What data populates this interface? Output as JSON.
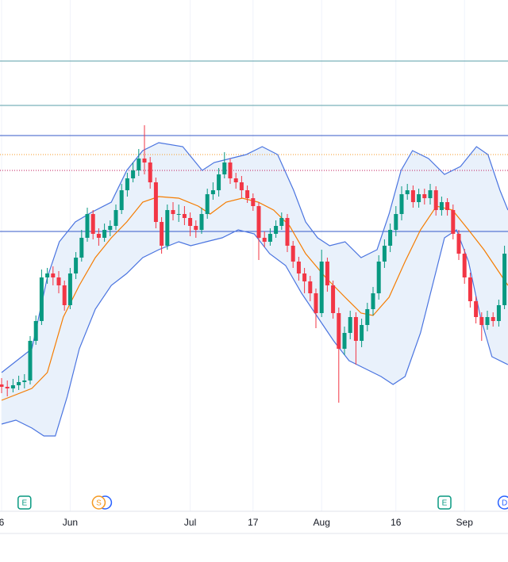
{
  "chart_data": {
    "type": "candlestick",
    "categories": [
      "6",
      null,
      null,
      null,
      null,
      null,
      null,
      null,
      null,
      null,
      null,
      null,
      "Jun",
      null,
      null,
      null,
      null,
      null,
      null,
      null,
      null,
      null,
      null,
      null,
      null,
      null,
      null,
      null,
      null,
      null,
      null,
      null,
      null,
      "Jul",
      null,
      null,
      null,
      null,
      null,
      null,
      null,
      null,
      null,
      null,
      "17",
      null,
      null,
      null,
      null,
      null,
      null,
      null,
      null,
      null,
      null,
      null,
      "Aug",
      null,
      null,
      null,
      null,
      null,
      null,
      null,
      null,
      null,
      null,
      null,
      null,
      "16",
      null,
      null,
      null,
      null,
      null,
      null,
      null,
      null,
      null,
      null,
      null,
      "Sep",
      null,
      null,
      null,
      null,
      null,
      null,
      null
    ],
    "open": [
      165,
      162,
      160,
      164,
      168,
      170,
      220,
      245,
      300,
      305,
      300,
      290,
      265,
      305,
      325,
      350,
      380,
      355,
      350,
      360,
      365,
      385,
      410,
      425,
      435,
      450,
      445,
      420,
      370,
      340,
      385,
      380,
      380,
      375,
      365,
      360,
      380,
      405,
      410,
      430,
      445,
      425,
      420,
      410,
      400,
      390,
      350,
      345,
      355,
      365,
      375,
      340,
      320,
      305,
      295,
      280,
      255,
      320,
      290,
      255,
      210,
      230,
      250,
      220,
      240,
      260,
      280,
      320,
      340,
      360,
      380,
      405,
      410,
      395,
      405,
      400,
      410,
      385,
      395,
      385,
      355,
      330,
      300,
      270,
      250,
      240,
      250,
      245,
      265
    ],
    "high": [
      173,
      170,
      172,
      176,
      178,
      226,
      252,
      310,
      312,
      314,
      308,
      296,
      312,
      332,
      360,
      388,
      385,
      362,
      368,
      372,
      392,
      418,
      432,
      445,
      462,
      492,
      452,
      426,
      376,
      392,
      395,
      392,
      390,
      382,
      372,
      388,
      412,
      420,
      438,
      458,
      450,
      432,
      428,
      416,
      406,
      395,
      358,
      362,
      372,
      382,
      380,
      346,
      326,
      312,
      302,
      286,
      335,
      325,
      296,
      262,
      238,
      258,
      256,
      248,
      268,
      288,
      328,
      348,
      368,
      390,
      415,
      418,
      416,
      412,
      412,
      418,
      415,
      402,
      400,
      392,
      360,
      336,
      306,
      276,
      256,
      258,
      256,
      272,
      340
    ],
    "low": [
      154,
      150,
      155,
      158,
      160,
      165,
      215,
      240,
      292,
      290,
      280,
      258,
      260,
      298,
      320,
      345,
      348,
      340,
      345,
      352,
      360,
      380,
      402,
      420,
      428,
      430,
      412,
      362,
      330,
      335,
      372,
      370,
      366,
      352,
      350,
      355,
      374,
      398,
      402,
      425,
      418,
      412,
      400,
      394,
      384,
      322,
      338,
      340,
      350,
      360,
      332,
      312,
      296,
      280,
      270,
      236,
      250,
      282,
      248,
      142,
      202,
      222,
      190,
      212,
      232,
      252,
      272,
      312,
      332,
      352,
      372,
      398,
      388,
      388,
      392,
      392,
      378,
      378,
      378,
      348,
      322,
      292,
      262,
      242,
      220,
      234,
      238,
      238,
      260
    ],
    "close": [
      162,
      160,
      164,
      168,
      170,
      220,
      245,
      300,
      305,
      300,
      290,
      265,
      305,
      325,
      350,
      380,
      355,
      350,
      360,
      365,
      385,
      410,
      425,
      435,
      450,
      445,
      420,
      370,
      340,
      385,
      380,
      380,
      375,
      365,
      360,
      380,
      405,
      410,
      430,
      445,
      425,
      420,
      410,
      400,
      390,
      350,
      345,
      355,
      365,
      375,
      340,
      320,
      305,
      295,
      280,
      255,
      320,
      290,
      255,
      210,
      230,
      250,
      220,
      240,
      260,
      280,
      320,
      340,
      360,
      380,
      405,
      410,
      395,
      405,
      400,
      410,
      385,
      395,
      385,
      355,
      330,
      300,
      270,
      250,
      240,
      250,
      245,
      265,
      330
    ],
    "up_color": "#089981",
    "down_color": "#f23645",
    "bands": [
      {
        "color": "#4a74e0",
        "x": [
          0,
          5.3,
          8,
          10.1,
          12.9,
          15.7,
          19.2,
          21.9,
          24.7,
          27.5,
          31.7,
          35.1,
          37.2,
          40,
          42.8,
          45.6,
          48.3,
          51.1,
          53.2,
          55.3,
          57.4,
          60.1,
          62.9,
          65.7,
          67.8,
          69.9,
          71.9,
          74.7,
          77.5,
          80.3,
          83.1,
          85.1,
          87.2,
          88.6
        ],
        "values": [
          180,
          210,
          300,
          345,
          370,
          382,
          395,
          435,
          460,
          470,
          465,
          435,
          445,
          450,
          455,
          465,
          455,
          410,
          370,
          350,
          340,
          345,
          325,
          335,
          380,
          435,
          460,
          450,
          430,
          440,
          465,
          455,
          410,
          385
        ]
      },
      {
        "color": "#f57c00",
        "x": [
          0,
          5.3,
          8,
          10.8,
          13.6,
          16.4,
          19.2,
          21.9,
          24.7,
          27.5,
          31,
          34.4,
          36.5,
          39.3,
          42.1,
          44.9,
          47.6,
          50.4,
          53.2,
          56.7,
          60.1,
          62.9,
          65,
          67.8,
          70.6,
          73.3,
          76.1,
          78.9,
          81.7,
          84.4,
          87.2,
          88.6
        ],
        "values": [
          145,
          160,
          180,
          250,
          290,
          325,
          350,
          370,
          395,
          402,
          400,
          390,
          380,
          395,
          400,
          395,
          385,
          365,
          330,
          300,
          275,
          255,
          252,
          275,
          320,
          360,
          390,
          385,
          360,
          335,
          305,
          290
        ]
      },
      {
        "color": "#4a74e0",
        "x": [
          0,
          2.5,
          5.3,
          7.4,
          9.4,
          11.5,
          13.6,
          16.4,
          19.2,
          21.9,
          24.7,
          27.5,
          31,
          33.1,
          35.8,
          38.6,
          41.4,
          44.2,
          46.9,
          49.7,
          52.5,
          55.3,
          58.1,
          60.8,
          63.6,
          66.4,
          68.5,
          70.6,
          73.3,
          75.4,
          77.5,
          79.6,
          81.7,
          83.8,
          85.8,
          88.6
        ],
        "values": [
          115,
          120,
          110,
          100,
          100,
          150,
          210,
          260,
          290,
          305,
          325,
          335,
          345,
          340,
          345,
          350,
          360,
          355,
          330,
          315,
          280,
          250,
          220,
          195,
          185,
          175,
          165,
          175,
          230,
          290,
          350,
          360,
          320,
          250,
          200,
          190
        ]
      }
    ],
    "band_fill": "#e9f1fb",
    "levels": [
      {
        "value": 573,
        "color": "#5a9fa8",
        "style": "solid"
      },
      {
        "value": 517,
        "color": "#5a9fa8",
        "style": "solid"
      },
      {
        "value": 479,
        "color": "#3458c8",
        "style": "solid"
      },
      {
        "value": 455,
        "color": "#f59a23",
        "style": "dotted"
      },
      {
        "value": 435,
        "color": "#c2185b",
        "style": "dotted"
      },
      {
        "value": 358,
        "color": "#3458c8",
        "style": "solid"
      }
    ],
    "events": [
      {
        "label": "E",
        "index": 4,
        "color": "#089981"
      },
      {
        "label": "S",
        "index": 17,
        "color": "#f59a23"
      },
      {
        "label": "E",
        "index": 77.5,
        "color": "#089981"
      },
      {
        "label": "D",
        "index": 88,
        "color": "#2962ff"
      }
    ],
    "ylim": [
      0,
      650
    ],
    "grid": true
  }
}
